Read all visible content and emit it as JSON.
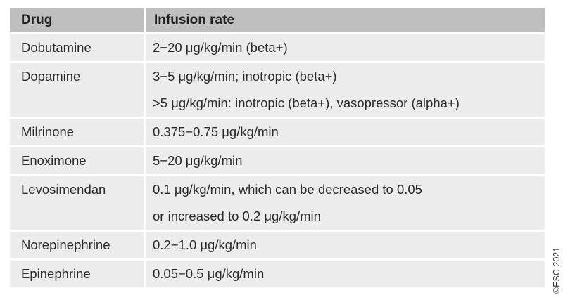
{
  "table": {
    "headers": [
      "Drug",
      "Infusion rate"
    ],
    "rows": [
      {
        "drug": "Dobutamine",
        "rate": [
          "2−20 μg/kg/min (beta+)"
        ]
      },
      {
        "drug": "Dopamine",
        "rate": [
          "3−5 μg/kg/min; inotropic (beta+)",
          ">5 μg/kg/min: inotropic (beta+), vasopressor (alpha+)"
        ]
      },
      {
        "drug": "Milrinone",
        "rate": [
          "0.375−0.75 μg/kg/min"
        ]
      },
      {
        "drug": "Enoximone",
        "rate": [
          "5−20 μg/kg/min"
        ]
      },
      {
        "drug": "Levosimendan",
        "rate": [
          "0.1 μg/kg/min, which can be decreased to 0.05",
          "or increased to 0.2 μg/kg/min"
        ]
      },
      {
        "drug": "Norepinephrine",
        "rate": [
          "0.2−1.0 μg/kg/min"
        ]
      },
      {
        "drug": "Epinephrine",
        "rate": [
          "0.05−0.5 μg/kg/min"
        ]
      }
    ]
  },
  "copyright": "©ESC 2021"
}
